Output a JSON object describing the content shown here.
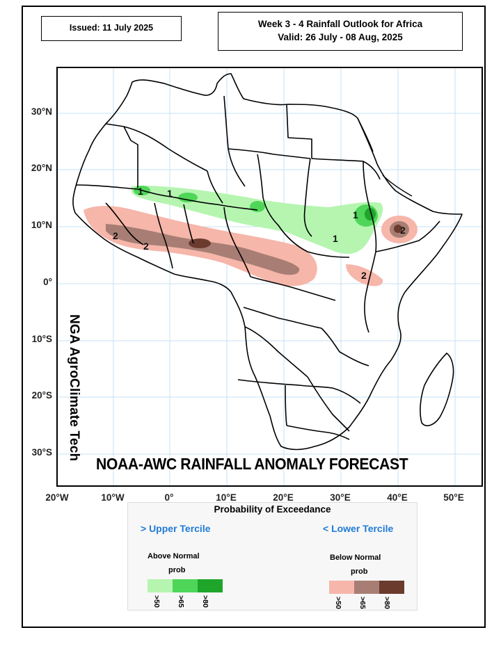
{
  "header": {
    "issued": "Issued: 11 July 2025",
    "title_line1": "Week 3 - 4 Rainfall Outlook for Africa",
    "title_line2": "Valid: 26 July - 08 Aug, 2025"
  },
  "map": {
    "lat_labels": [
      "30°N",
      "20°N",
      "10°N",
      "0°",
      "10°S",
      "20°S",
      "30°S"
    ],
    "lon_labels": [
      "20°W",
      "10°W",
      "0°",
      "10°E",
      "20°E",
      "30°E",
      "40°E",
      "50°E"
    ],
    "vertical_credit": "NGA AgroClimate Tech",
    "forecast_title": "NOAA-AWC RAINFALL ANOMALY FORECAST",
    "contour_labels": {
      "above_1": "1",
      "below_2": "2"
    },
    "colors": {
      "above_50": "#b5f5b0",
      "above_65": "#4fd659",
      "above_80": "#1ea52a",
      "below_50": "#f6b6aa",
      "below_65": "#a87e74",
      "below_80": "#6b3b2e",
      "gridline": "#c6e0f5"
    }
  },
  "legend": {
    "title": "Probability of Exceedance",
    "upper_tercile": "> Upper Tercile",
    "lower_tercile": "< Lower Tercile",
    "above_label": "Above Normal",
    "above_prob": "prob",
    "below_label": "Below Normal",
    "below_prob": "prob",
    "ticks": [
      ">50",
      ">65",
      ">80"
    ]
  }
}
